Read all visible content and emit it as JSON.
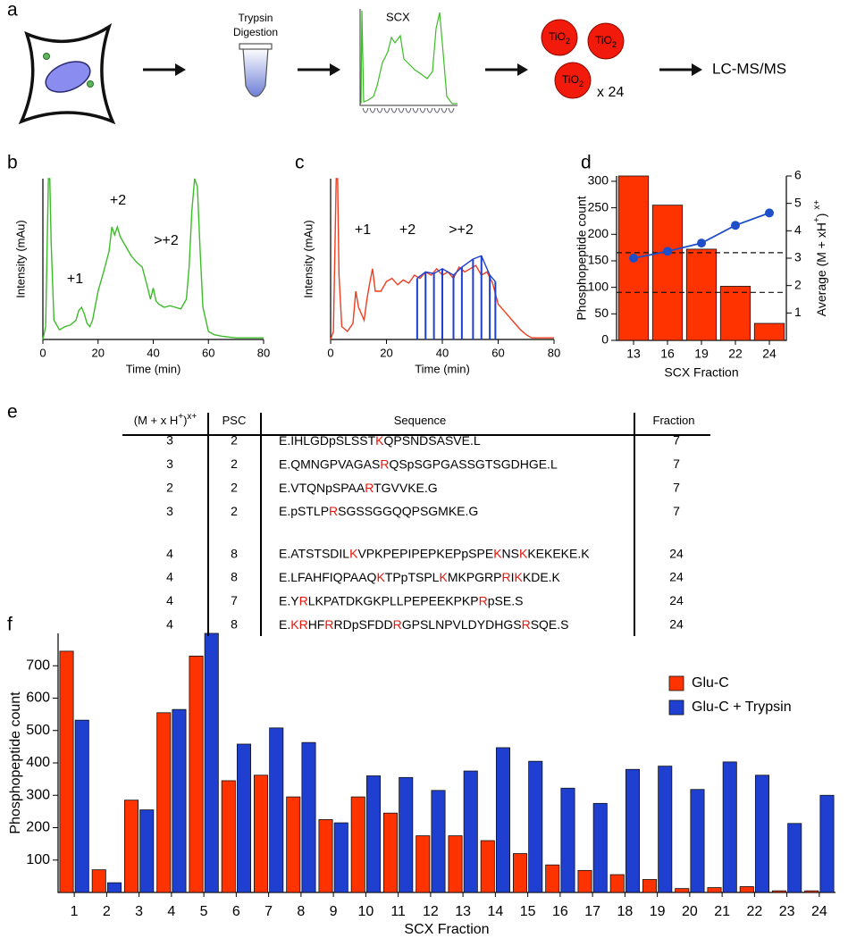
{
  "schematic": {
    "label": "a",
    "digestion": [
      "Trypsin",
      "Digestion"
    ],
    "separation": "SCX",
    "beads": [
      [
        "TiO",
        "2"
      ],
      [
        "TiO",
        "2"
      ],
      [
        "TiO",
        "2"
      ]
    ],
    "multiplier": "x 24",
    "final": "LC-MS/MS"
  },
  "chart_data": [
    {
      "type": "line",
      "label": "b",
      "x_label": "Time (min)",
      "y_label": "Intensity (mAu)",
      "annotations": [
        "+1",
        "+2",
        ">+2"
      ],
      "xlim": [
        0,
        80
      ],
      "xticks": [
        0,
        20,
        40,
        60,
        80
      ],
      "ylim": [
        0,
        100
      ],
      "series": [
        {
          "color": "#3cbc28",
          "x": [
            0,
            1,
            2,
            2.5,
            3,
            4,
            6,
            8,
            10,
            12,
            13,
            14,
            15,
            16,
            17,
            18,
            20,
            22,
            24,
            25,
            26,
            27,
            28,
            30,
            32,
            34,
            36,
            38,
            39,
            40,
            41,
            42,
            44,
            46,
            48,
            50,
            52,
            53,
            54,
            55,
            56,
            57,
            58,
            60,
            62,
            65,
            70,
            75,
            80
          ],
          "values": [
            0,
            8,
            100,
            100,
            60,
            12,
            6,
            8,
            9,
            12,
            18,
            20,
            16,
            10,
            8,
            12,
            30,
            42,
            55,
            70,
            65,
            70,
            64,
            58,
            52,
            48,
            45,
            32,
            25,
            32,
            24,
            22,
            20,
            21,
            20,
            19,
            25,
            45,
            80,
            100,
            95,
            55,
            20,
            5,
            3,
            2,
            1,
            1,
            1
          ]
        }
      ]
    },
    {
      "type": "line",
      "label": "c",
      "x_label": "Time (min)",
      "y_label": "Intensity (mAu)",
      "annotations": [
        "+1",
        "+2",
        ">+2"
      ],
      "xlim": [
        0,
        80
      ],
      "xticks": [
        0,
        20,
        40,
        60,
        80
      ],
      "ylim": [
        0,
        100
      ],
      "series": [
        {
          "color": "#f03c1e",
          "x": [
            0,
            1,
            2,
            2.5,
            3,
            4,
            6,
            8,
            9,
            10,
            12,
            13,
            14,
            15,
            16,
            18,
            20,
            22,
            24,
            26,
            28,
            30,
            32,
            34,
            36,
            38,
            40,
            42,
            44,
            46,
            48,
            50,
            52,
            54,
            56,
            58,
            60,
            62,
            64,
            66,
            68,
            70,
            72,
            75,
            80
          ],
          "values": [
            0,
            5,
            100,
            100,
            40,
            8,
            5,
            10,
            30,
            20,
            12,
            25,
            35,
            44,
            30,
            30,
            36,
            38,
            34,
            37,
            35,
            40,
            38,
            42,
            40,
            44,
            40,
            42,
            38,
            45,
            42,
            44,
            46,
            40,
            42,
            35,
            22,
            18,
            14,
            10,
            6,
            3,
            1,
            1,
            1
          ]
        },
        {
          "color": "#1f3fd0",
          "droplines": true,
          "x": [
            31,
            34,
            37,
            40,
            44,
            47,
            51,
            54,
            57,
            59
          ],
          "values": [
            38,
            42,
            41,
            44,
            40,
            45,
            50,
            52,
            40,
            36
          ]
        }
      ]
    },
    {
      "type": "bar",
      "label": "d",
      "x_label": "SCX Fraction",
      "y_label": "Phosphopeptide count",
      "y2_label": [
        "Average (M + xH",
        "+",
        ") ",
        "x+"
      ],
      "categories": [
        "13",
        "16",
        "19",
        "22",
        "24"
      ],
      "ylim": [
        0,
        310
      ],
      "yticks": [
        0,
        50,
        100,
        150,
        200,
        250,
        300
      ],
      "y2lim": [
        0,
        6
      ],
      "y2ticks": [
        1,
        2,
        3,
        4,
        5,
        6
      ],
      "reference_lines": {
        "axis": "y2",
        "values": [
          3.2,
          1.75
        ]
      },
      "series": [
        {
          "color": "#ff3300",
          "values": [
            310,
            255,
            172,
            102,
            32
          ]
        },
        {
          "type": "line",
          "axis": "y2",
          "color": "#1f4fc8",
          "values": [
            3.0,
            3.25,
            3.55,
            4.2,
            4.65
          ]
        }
      ]
    },
    {
      "type": "bar",
      "label": "f",
      "x_label": "SCX Fraction",
      "y_label": "Phosphopeptide count",
      "categories": [
        "1",
        "2",
        "3",
        "4",
        "5",
        "6",
        "7",
        "8",
        "9",
        "10",
        "11",
        "12",
        "13",
        "14",
        "15",
        "16",
        "17",
        "18",
        "19",
        "20",
        "21",
        "22",
        "23",
        "24"
      ],
      "ylim": [
        0,
        800
      ],
      "yticks": [
        100,
        200,
        300,
        400,
        500,
        600,
        700
      ],
      "legend": "upper right",
      "series": [
        {
          "name": "Glu-C",
          "color": "#ff3300",
          "values": [
            745,
            70,
            285,
            555,
            730,
            345,
            362,
            295,
            225,
            295,
            245,
            175,
            175,
            160,
            120,
            85,
            68,
            55,
            40,
            12,
            15,
            18,
            5,
            5
          ]
        },
        {
          "name": "Glu-C + Trypsin",
          "color": "#1f3fd0",
          "values": [
            532,
            30,
            255,
            565,
            800,
            458,
            508,
            463,
            215,
            360,
            355,
            315,
            375,
            447,
            405,
            322,
            275,
            380,
            390,
            318,
            403,
            362,
            213,
            300
          ]
        }
      ]
    }
  ],
  "table": {
    "label": "e",
    "columns": [
      [
        "(M + x H",
        "+",
        ")",
        "x+"
      ],
      [
        "PSC"
      ],
      [
        "Sequence"
      ],
      [
        "Fraction"
      ]
    ],
    "rows": [
      [
        "3",
        "2",
        [
          "E.IHLGDpSLSST",
          "K",
          "QPSNDSASVE.L"
        ],
        "7"
      ],
      [
        "3",
        "2",
        [
          "E.QMNGPVAGAS",
          "R",
          "QSpSGPGASSGTSGDHGE.L"
        ],
        "7"
      ],
      [
        "2",
        "2",
        [
          "E.VTQNpSPAA",
          "R",
          "TGVVKE.G"
        ],
        "7"
      ],
      [
        "3",
        "2",
        [
          "E.pSTLP",
          "R",
          "SGSSGGQQPSGMKE.G"
        ],
        "7"
      ],
      [
        "4",
        "8",
        [
          "E.ATSTSDIL",
          "K",
          "VPKPEPIPEPKEPpSPE",
          "K",
          "NS",
          "K",
          "KEKEKE.K"
        ],
        "24"
      ],
      [
        "4",
        "8",
        [
          "E.LFAHFIQPAAQ",
          "K",
          "TPpTSPL",
          "K",
          "MKPGRP",
          "R",
          "I",
          "K",
          "KDE.K"
        ],
        "24"
      ],
      [
        "4",
        "7",
        [
          "E.Y",
          "R",
          "LKPATDKGKPLLPEPEEKPKP",
          "R",
          "pSE.S"
        ],
        "24"
      ],
      [
        "4",
        "8",
        [
          "E.",
          "KR",
          "HF",
          "R",
          "RDpSFDD",
          "R",
          "GPSLNPVLDYDHGS",
          "R",
          "SQE.S"
        ],
        "24"
      ]
    ]
  }
}
